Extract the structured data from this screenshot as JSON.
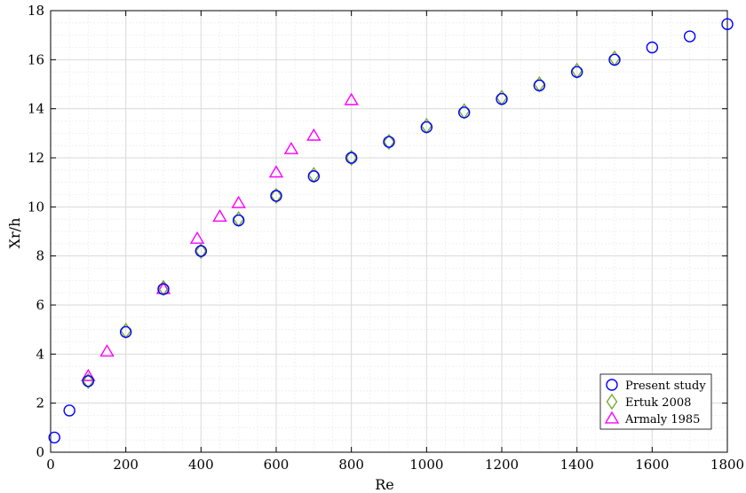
{
  "chart_data": {
    "type": "scatter",
    "title": "",
    "xlabel": "Re",
    "ylabel": "Xr/h",
    "xlim": [
      0,
      1800
    ],
    "ylim": [
      0,
      18
    ],
    "x_ticks": [
      0,
      200,
      400,
      600,
      800,
      1000,
      1200,
      1400,
      1600,
      1800
    ],
    "y_ticks": [
      0,
      2,
      4,
      6,
      8,
      10,
      12,
      14,
      16,
      18
    ],
    "grid": true,
    "legend_position": "bottom-right",
    "series": [
      {
        "name": "Present study",
        "marker": "circle",
        "color": "#0000ff",
        "points": [
          [
            10,
            0.6
          ],
          [
            50,
            1.7
          ],
          [
            100,
            2.9
          ],
          [
            200,
            4.9
          ],
          [
            300,
            6.65
          ],
          [
            400,
            8.2
          ],
          [
            500,
            9.45
          ],
          [
            600,
            10.45
          ],
          [
            700,
            11.25
          ],
          [
            800,
            12.0
          ],
          [
            900,
            12.65
          ],
          [
            1000,
            13.25
          ],
          [
            1100,
            13.85
          ],
          [
            1200,
            14.4
          ],
          [
            1300,
            14.95
          ],
          [
            1400,
            15.5
          ],
          [
            1500,
            16.0
          ],
          [
            1600,
            16.5
          ],
          [
            1700,
            16.95
          ],
          [
            1800,
            17.45
          ]
        ]
      },
      {
        "name": "Ertuk 2008",
        "marker": "diamond",
        "color": "#77ac30",
        "points": [
          [
            100,
            2.9
          ],
          [
            200,
            4.95
          ],
          [
            300,
            6.7
          ],
          [
            400,
            8.2
          ],
          [
            500,
            9.5
          ],
          [
            600,
            10.45
          ],
          [
            700,
            11.3
          ],
          [
            800,
            12.0
          ],
          [
            900,
            12.65
          ],
          [
            1000,
            13.3
          ],
          [
            1100,
            13.9
          ],
          [
            1200,
            14.45
          ],
          [
            1300,
            15.0
          ],
          [
            1400,
            15.55
          ],
          [
            1500,
            16.05
          ]
        ]
      },
      {
        "name": "Armaly 1985",
        "marker": "triangle",
        "color": "#ff00ff",
        "points": [
          [
            100,
            3.1
          ],
          [
            150,
            4.1
          ],
          [
            300,
            6.65
          ],
          [
            390,
            8.7
          ],
          [
            450,
            9.6
          ],
          [
            500,
            10.15
          ],
          [
            600,
            11.4
          ],
          [
            640,
            12.35
          ],
          [
            700,
            12.9
          ],
          [
            800,
            14.35
          ]
        ]
      }
    ]
  }
}
